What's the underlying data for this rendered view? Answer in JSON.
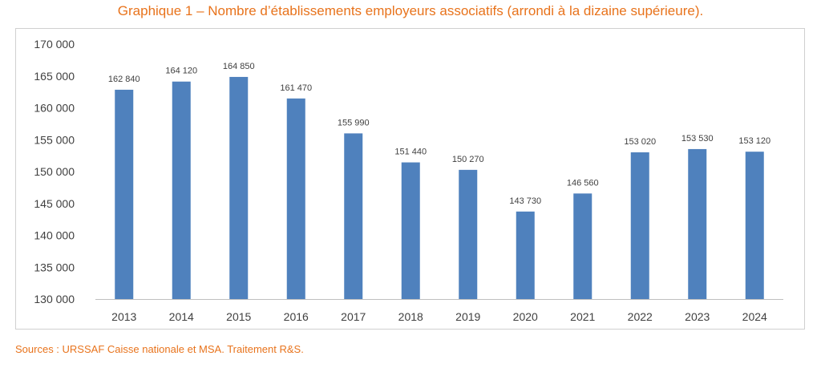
{
  "title": "Graphique 1 – Nombre d’établissements employeurs associatifs (arrondi à la dizaine supérieure).",
  "source": "Sources : URSSAF Caisse nationale et MSA. Traitement R&S.",
  "colors": {
    "bar": "#4f81bd",
    "title": "#e8731c",
    "axis": "#bfbfbf",
    "text": "#404040"
  },
  "chart_data": {
    "type": "bar",
    "title": "Graphique 1 – Nombre d’établissements employeurs associatifs (arrondi à la dizaine supérieure).",
    "xlabel": "",
    "ylabel": "",
    "categories": [
      "2013",
      "2014",
      "2015",
      "2016",
      "2017",
      "2018",
      "2019",
      "2020",
      "2021",
      "2022",
      "2023",
      "2024"
    ],
    "values": [
      162840,
      164120,
      164850,
      161470,
      155990,
      151440,
      150270,
      143730,
      146560,
      153020,
      153530,
      153120
    ],
    "value_labels": [
      "162 840",
      "164 120",
      "164 850",
      "161 470",
      "155 990",
      "151 440",
      "150 270",
      "143 730",
      "146 560",
      "153 020",
      "153 530",
      "153 120"
    ],
    "y_ticks": [
      130000,
      135000,
      140000,
      145000,
      150000,
      155000,
      160000,
      165000,
      170000
    ],
    "y_tick_labels": [
      "130 000",
      "135 000",
      "140 000",
      "145 000",
      "150 000",
      "155 000",
      "160 000",
      "165 000",
      "170 000"
    ],
    "ylim": [
      130000,
      170000
    ],
    "grid": false,
    "legend": "none"
  }
}
